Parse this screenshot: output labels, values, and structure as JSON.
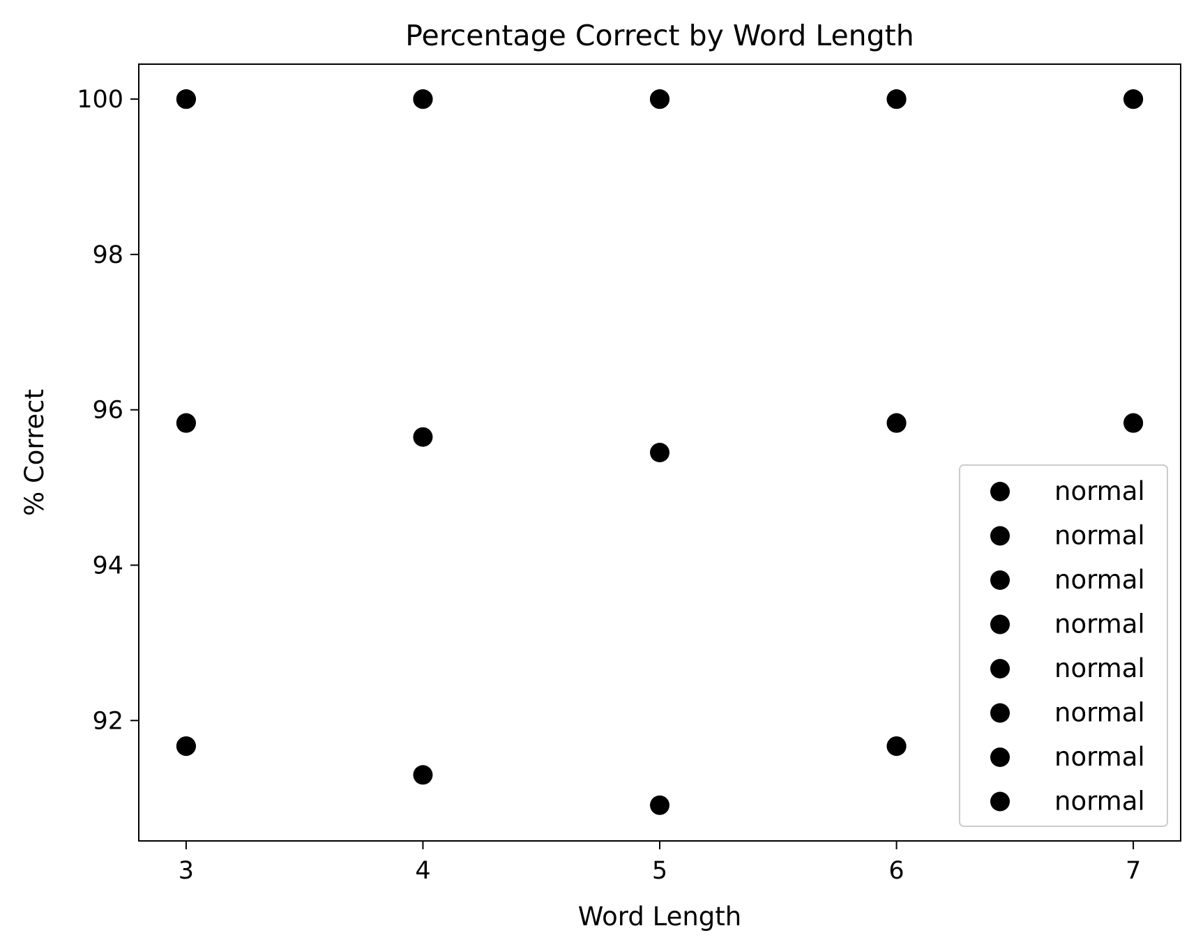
{
  "chart_data": {
    "type": "scatter",
    "title": "Percentage Correct by Word Length",
    "xlabel": "Word Length",
    "ylabel": "% Correct",
    "xlim": [
      2.8,
      7.2
    ],
    "ylim": [
      90.45,
      100.45
    ],
    "x_ticks": [
      3,
      4,
      5,
      6,
      7
    ],
    "y_ticks": [
      92,
      94,
      96,
      98,
      100
    ],
    "grid": false,
    "legend_position": "lower-right",
    "marker_color": "#000000",
    "series": [
      {
        "name": "normal",
        "points": [
          {
            "x": 3,
            "y": 100
          },
          {
            "x": 4,
            "y": 100
          },
          {
            "x": 5,
            "y": 100
          },
          {
            "x": 6,
            "y": 100
          },
          {
            "x": 7,
            "y": 100
          }
        ]
      },
      {
        "name": "normal",
        "points": [
          {
            "x": 3,
            "y": 100
          },
          {
            "x": 4,
            "y": 100
          },
          {
            "x": 5,
            "y": 100
          },
          {
            "x": 6,
            "y": 100
          },
          {
            "x": 7,
            "y": 100
          }
        ]
      },
      {
        "name": "normal",
        "points": [
          {
            "x": 3,
            "y": 95.83
          },
          {
            "x": 4,
            "y": 95.65
          },
          {
            "x": 5,
            "y": 95.45
          },
          {
            "x": 6,
            "y": 95.83
          },
          {
            "x": 7,
            "y": 95.83
          }
        ]
      },
      {
        "name": "normal",
        "points": [
          {
            "x": 3,
            "y": 95.83
          },
          {
            "x": 6,
            "y": 95.83
          },
          {
            "x": 7,
            "y": 95.83
          }
        ]
      },
      {
        "name": "normal",
        "points": [
          {
            "x": 3,
            "y": 91.67
          },
          {
            "x": 4,
            "y": 91.3
          },
          {
            "x": 5,
            "y": 90.91
          },
          {
            "x": 6,
            "y": 91.67
          }
        ]
      },
      {
        "name": "normal",
        "points": [
          {
            "x": 3,
            "y": 91.67
          },
          {
            "x": 6,
            "y": 91.67
          }
        ]
      },
      {
        "name": "normal",
        "points": [
          {
            "x": 3,
            "y": 100
          },
          {
            "x": 5,
            "y": 100
          },
          {
            "x": 7,
            "y": 100
          }
        ]
      },
      {
        "name": "normal",
        "points": [
          {
            "x": 4,
            "y": 100
          },
          {
            "x": 6,
            "y": 100
          }
        ]
      }
    ]
  }
}
